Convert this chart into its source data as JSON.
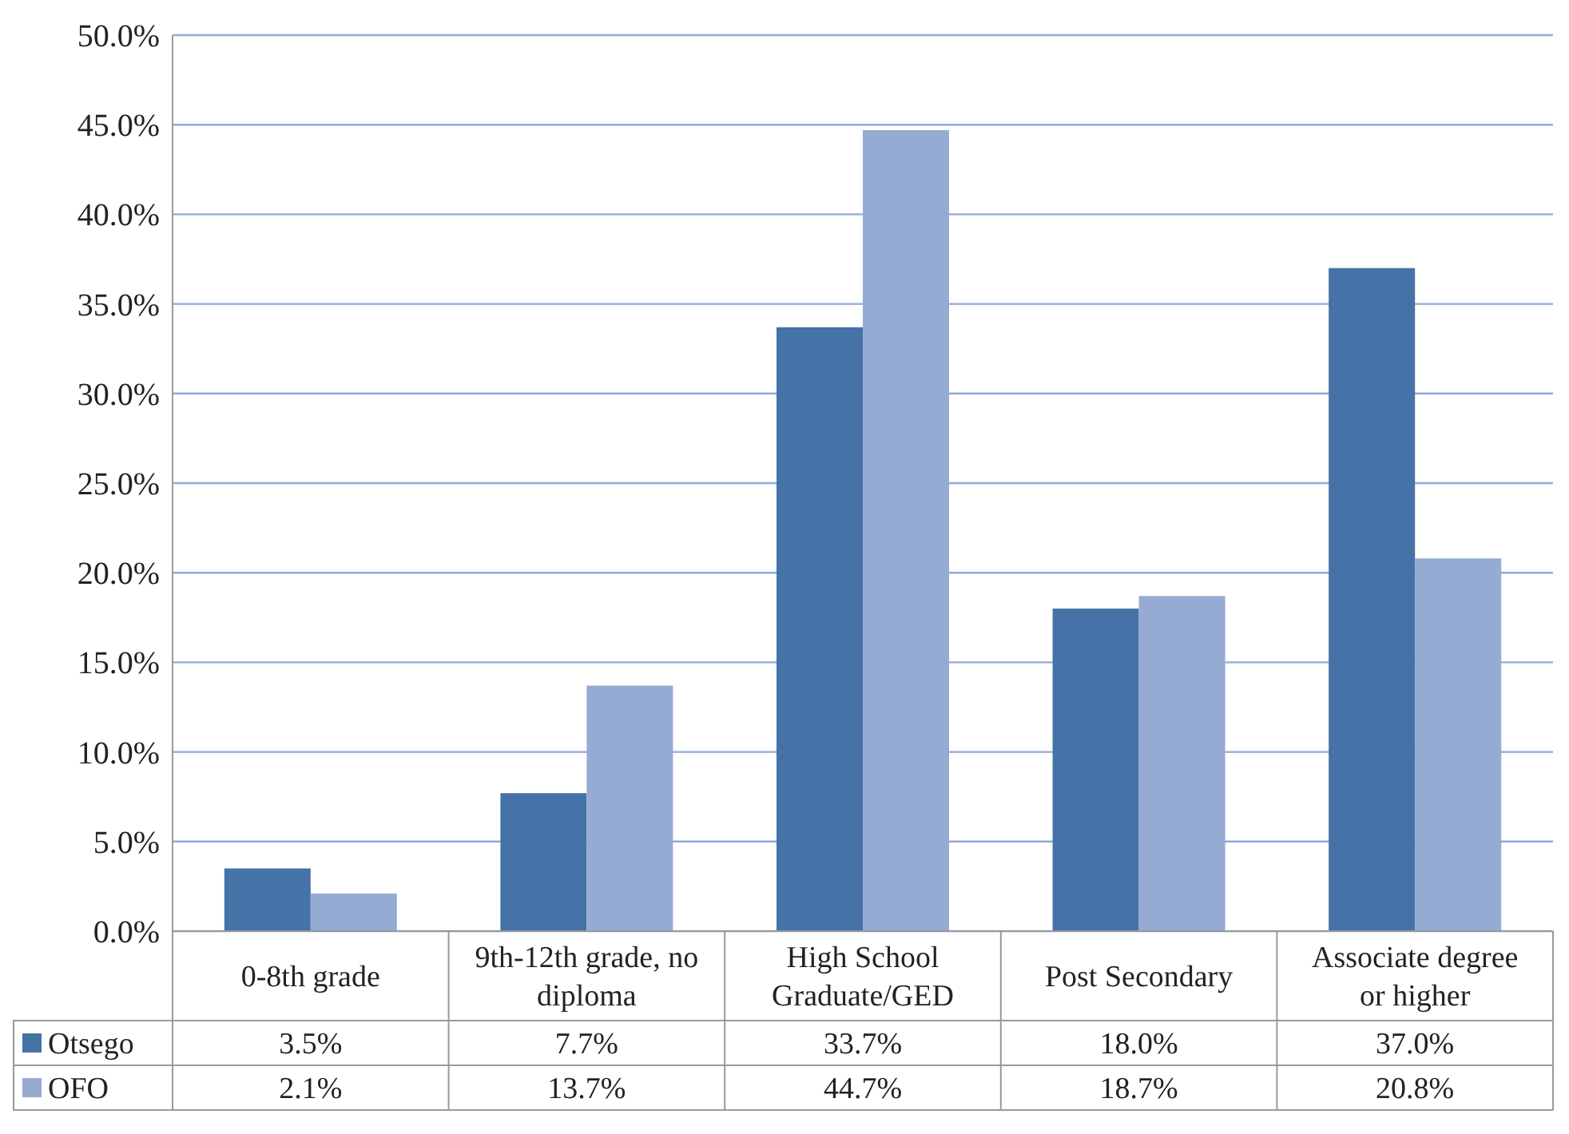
{
  "chart_data": {
    "type": "bar",
    "categories": [
      "0-8th grade",
      "9th-12th grade, no diploma",
      "High School Graduate/GED",
      "Post Secondary",
      "Associate degree or higher"
    ],
    "series": [
      {
        "name": "Otsego",
        "color": "#4572a7",
        "values": [
          3.5,
          7.7,
          33.7,
          18.0,
          37.0
        ],
        "value_labels": [
          "3.5%",
          "7.7%",
          "33.7%",
          "18.0%",
          "37.0%"
        ]
      },
      {
        "name": "OFO",
        "color": "#95abd3",
        "values": [
          2.1,
          13.7,
          44.7,
          18.7,
          20.8
        ],
        "value_labels": [
          "2.1%",
          "13.7%",
          "44.7%",
          "18.7%",
          "20.8%"
        ]
      }
    ],
    "ylim": [
      0,
      50
    ],
    "yticks": [
      {
        "value": 0,
        "label": "0.0%"
      },
      {
        "value": 5,
        "label": "5.0%"
      },
      {
        "value": 10,
        "label": "10.0%"
      },
      {
        "value": 15,
        "label": "15.0%"
      },
      {
        "value": 20,
        "label": "20.0%"
      },
      {
        "value": 25,
        "label": "25.0%"
      },
      {
        "value": 30,
        "label": "30.0%"
      },
      {
        "value": 35,
        "label": "35.0%"
      },
      {
        "value": 40,
        "label": "40.0%"
      },
      {
        "value": 45,
        "label": "45.0%"
      },
      {
        "value": 50,
        "label": "50.0%"
      }
    ],
    "grid": true,
    "legend": "bottom"
  }
}
